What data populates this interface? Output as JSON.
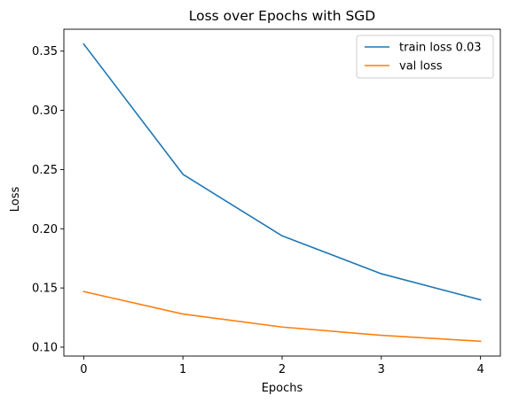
{
  "chart_data": {
    "type": "line",
    "title": "Loss over Epochs with SGD",
    "xlabel": "Epochs",
    "ylabel": "Loss",
    "x": [
      0,
      1,
      2,
      3,
      4
    ],
    "xticks": [
      0,
      1,
      2,
      3,
      4
    ],
    "yticks": [
      0.1,
      0.15,
      0.2,
      0.25,
      0.3,
      0.35
    ],
    "ytick_labels": [
      "0.10",
      "0.15",
      "0.20",
      "0.25",
      "0.30",
      "0.35"
    ],
    "xlim": [
      -0.2,
      4.2
    ],
    "ylim": [
      0.0925,
      0.3685
    ],
    "grid": false,
    "legend_position": "upper right",
    "series": [
      {
        "name": "train loss 0.03",
        "color": "#1f77b4",
        "values": [
          0.356,
          0.246,
          0.194,
          0.162,
          0.14
        ]
      },
      {
        "name": "val loss",
        "color": "#ff7f0e",
        "values": [
          0.147,
          0.128,
          0.117,
          0.11,
          0.105
        ]
      }
    ]
  }
}
